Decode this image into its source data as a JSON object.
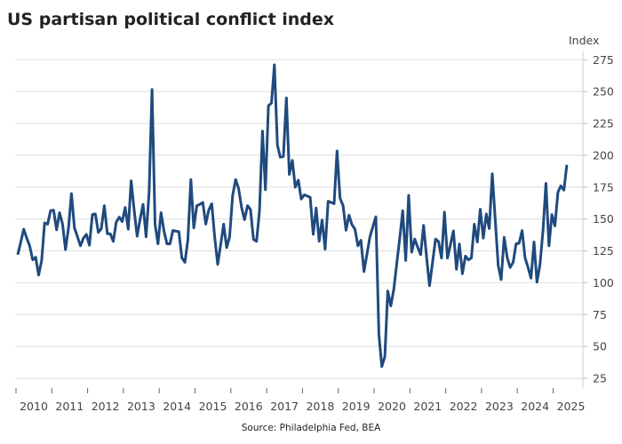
{
  "chart_data": {
    "type": "line",
    "title": "US partisan political conflict index",
    "ylabel": "Index",
    "xlabel": "",
    "source": "Source: Philadelphia Fed, BEA",
    "ylim": [
      25,
      275
    ],
    "yticks": [
      25,
      50,
      75,
      100,
      125,
      150,
      175,
      200,
      225,
      250,
      275
    ],
    "xticks": [
      "2010",
      "2011",
      "2012",
      "2013",
      "2014",
      "2015",
      "2016",
      "2017",
      "2018",
      "2019",
      "2020",
      "2021",
      "2022",
      "2023",
      "2024",
      "2025"
    ],
    "x_start": "2010-01",
    "frequency": "monthly",
    "grid": true,
    "color": "#1f4a7e",
    "series": [
      {
        "name": "US partisan political conflict index",
        "values": [
          122,
          132,
          142,
          135,
          129,
          118,
          120,
          106,
          117.5,
          147,
          146,
          156.5,
          157,
          141.5,
          155,
          146,
          126,
          143,
          170,
          143,
          136,
          129,
          135,
          138,
          129.5,
          153.5,
          154,
          139.5,
          142.5,
          160.5,
          138.5,
          138.5,
          132.5,
          147.5,
          151.5,
          148,
          159,
          142,
          180,
          157,
          136.5,
          150,
          161.5,
          136,
          171,
          251.7,
          146,
          130.5,
          155,
          140.5,
          130.5,
          130.5,
          141,
          140.5,
          140,
          119.5,
          116,
          133.5,
          181,
          143,
          160.5,
          161.5,
          163,
          146,
          157,
          162,
          136,
          114.5,
          130,
          146,
          127.5,
          136,
          168.5,
          181,
          174,
          159,
          149.5,
          160.5,
          157.5,
          134,
          132.5,
          156,
          219,
          173,
          239,
          241,
          271,
          208,
          198.5,
          199,
          245,
          185,
          196,
          175,
          180.5,
          165.7,
          169,
          168,
          167,
          138,
          158.6,
          132.6,
          149.3,
          126.3,
          164,
          163,
          162,
          203.4,
          166.3,
          160.5,
          141.2,
          153,
          145.5,
          142,
          129,
          133.3,
          108.7,
          122,
          136,
          144,
          151.7,
          59.4,
          34.3,
          42,
          93.5,
          81.8,
          94.5,
          115,
          135,
          156.5,
          117.5,
          168.6,
          124,
          134.3,
          128,
          122,
          145,
          120,
          97.7,
          116,
          134.3,
          132.3,
          119.4,
          155.4,
          119.4,
          130,
          140.7,
          110.6,
          130.4,
          107,
          121,
          118,
          119.4,
          145.9,
          132,
          157.7,
          135,
          154,
          142.5,
          185.5,
          150,
          113.5,
          102.4,
          135.6,
          119.8,
          112,
          116,
          130.5,
          131,
          141,
          119.6,
          112,
          103.6,
          132,
          100.4,
          114.3,
          141,
          178,
          129,
          153.5,
          144.7,
          171,
          176,
          172.6,
          192.5
        ]
      }
    ]
  }
}
